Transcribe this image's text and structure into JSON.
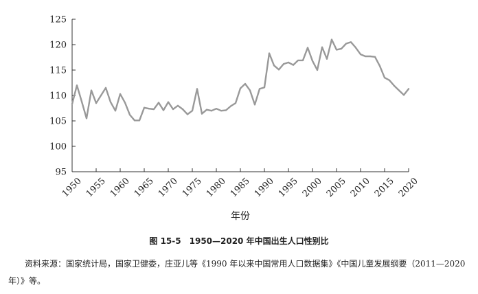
{
  "chart_data": {
    "type": "line",
    "xlabel": "年份",
    "ylabel": "",
    "ylim": [
      95,
      125
    ],
    "xlim": [
      1950,
      2020
    ],
    "yticks": [
      95,
      100,
      105,
      110,
      115,
      120,
      125
    ],
    "xticks": [
      1950,
      1955,
      1960,
      1965,
      1970,
      1975,
      1980,
      1985,
      1990,
      1995,
      2000,
      2005,
      2010,
      2015,
      2020
    ],
    "grid": false,
    "line_color": "#999999",
    "series": [
      {
        "name": "",
        "x": [
          1950,
          1951,
          1952,
          1953,
          1954,
          1955,
          1956,
          1957,
          1958,
          1959,
          1960,
          1961,
          1962,
          1963,
          1964,
          1965,
          1966,
          1967,
          1968,
          1969,
          1970,
          1971,
          1972,
          1973,
          1974,
          1975,
          1976,
          1977,
          1978,
          1979,
          1980,
          1981,
          1982,
          1983,
          1984,
          1985,
          1986,
          1987,
          1988,
          1989,
          1990,
          1991,
          1992,
          1993,
          1994,
          1995,
          1996,
          1997,
          1998,
          1999,
          2000,
          2001,
          2002,
          2003,
          2004,
          2005,
          2006,
          2007,
          2008,
          2009,
          2010,
          2011,
          2012,
          2013,
          2014,
          2015,
          2016,
          2017,
          2018,
          2019,
          2020
        ],
        "values": [
          108.3,
          112.0,
          108.8,
          105.5,
          111.0,
          108.5,
          110.0,
          111.5,
          108.7,
          107.0,
          110.3,
          108.6,
          106.2,
          105.1,
          105.1,
          107.6,
          107.4,
          107.3,
          108.6,
          107.1,
          108.7,
          107.3,
          108.0,
          107.3,
          106.3,
          107.0,
          111.3,
          106.4,
          107.2,
          107.0,
          107.4,
          107.0,
          107.1,
          107.9,
          108.5,
          111.4,
          112.3,
          111.0,
          108.2,
          111.3,
          111.6,
          118.3,
          115.9,
          115.1,
          116.2,
          116.5,
          116.0,
          116.9,
          116.9,
          119.4,
          116.8,
          115.0,
          119.5,
          117.2,
          121.0,
          119.0,
          119.2,
          120.2,
          120.5,
          119.4,
          118.1,
          117.7,
          117.7,
          117.6,
          115.8,
          113.5,
          113.0,
          111.9,
          111.0,
          110.1,
          111.3
        ]
      }
    ]
  },
  "caption": "图 15-5　1950—2020 年中国出生人口性别比",
  "source_note": "资料来源：国家统计局，国家卫健委，庄亚儿等《1990 年以来中国常用人口数据集》《中国儿童发展纲要（2011—2020 年）》等。"
}
